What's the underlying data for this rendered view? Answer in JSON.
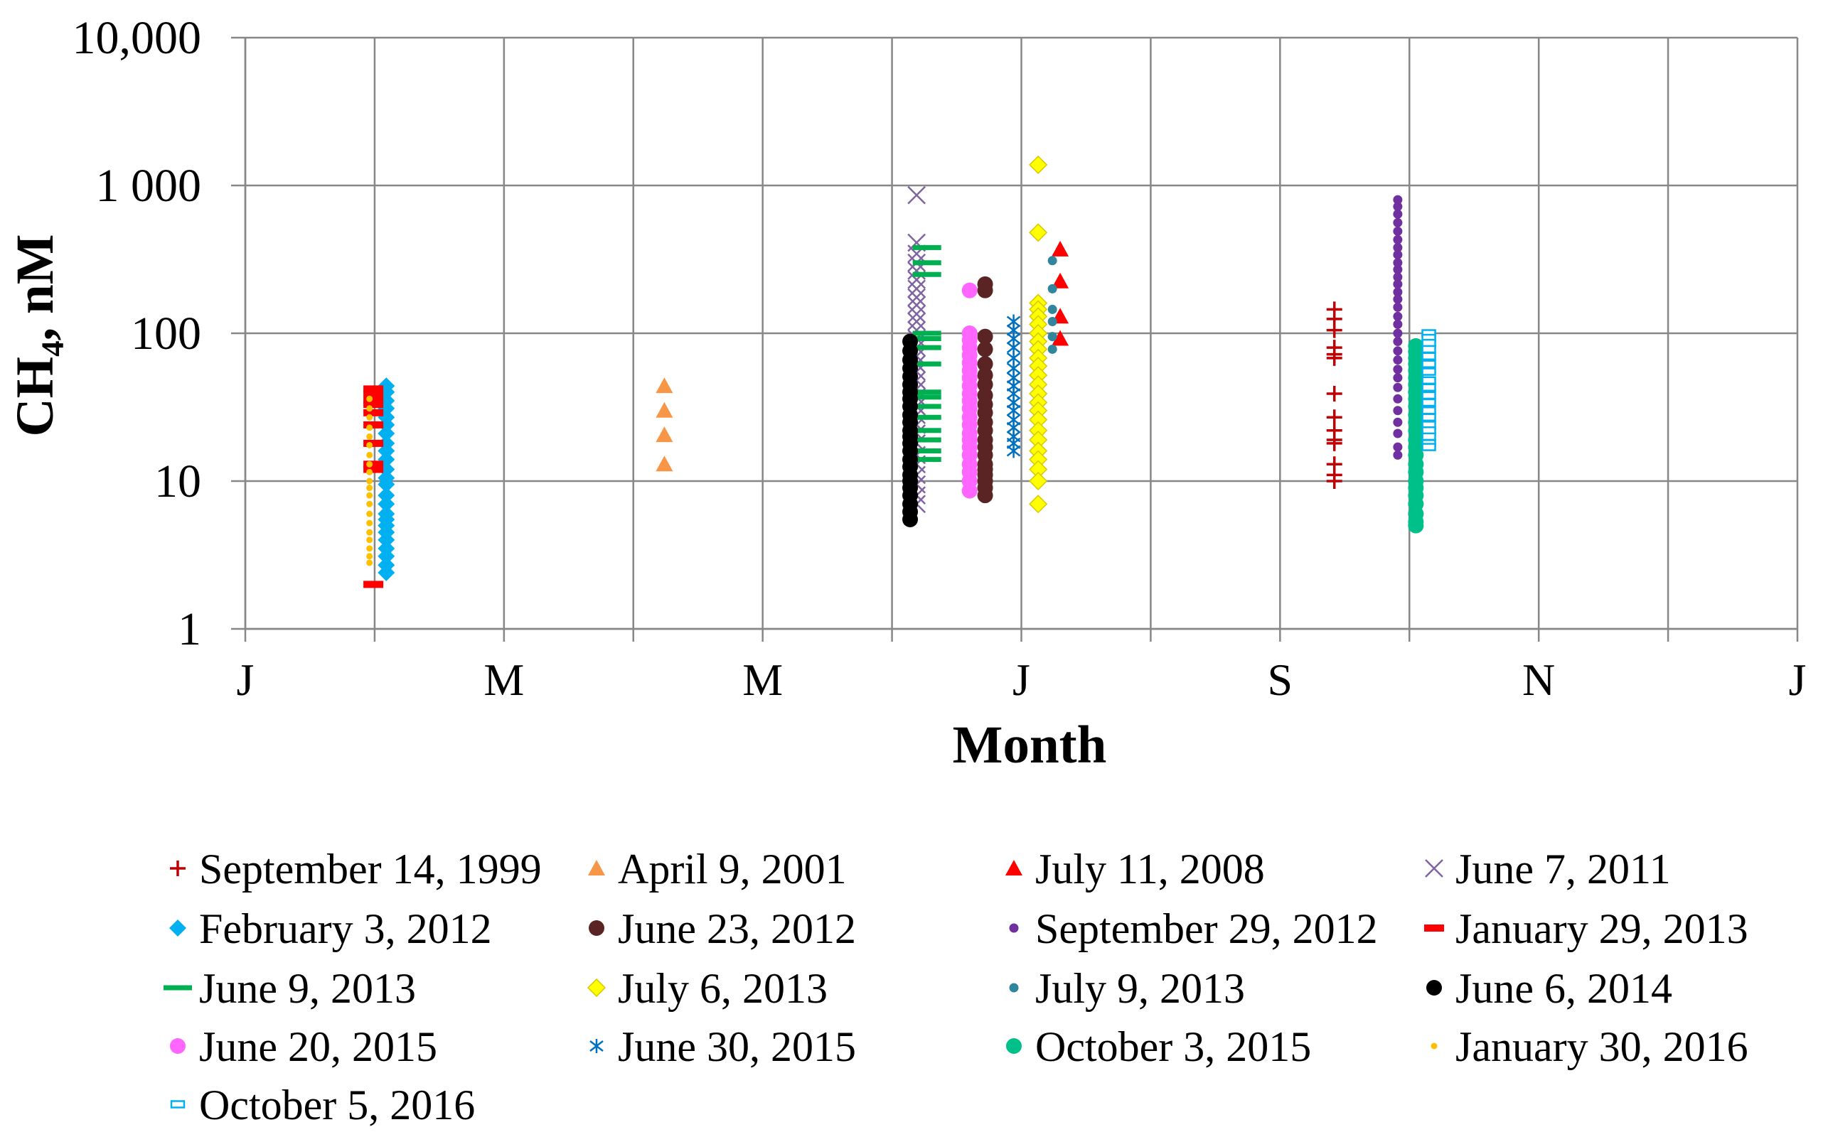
{
  "chart_data": {
    "type": "scatter",
    "title": "",
    "xlabel": "Month",
    "ylabel": "CH₄, nM",
    "x_scale": "linear",
    "y_scale": "log",
    "xlim": [
      0,
      12
    ],
    "ylim": [
      1,
      10000
    ],
    "x_grid_step": 1,
    "x_ticks": [
      0,
      2,
      4,
      6,
      8,
      10,
      12
    ],
    "x_tick_labels": [
      "J",
      "M",
      "M",
      "J",
      "S",
      "N",
      "J"
    ],
    "y_ticks": [
      1,
      10,
      100,
      1000,
      10000
    ],
    "y_tick_labels": [
      "1",
      "10",
      "100",
      "1 000",
      "10,000"
    ],
    "grid": true,
    "legend_position": "bottom",
    "series": [
      {
        "name": "September 14, 1999",
        "marker": "plus",
        "color": "#c00000",
        "x": 8.42,
        "y": [
          145,
          125,
          105,
          80,
          72,
          68,
          39,
          27,
          22,
          19,
          18,
          13,
          11,
          10
        ]
      },
      {
        "name": "April 9, 2001",
        "marker": "triangle",
        "color": "#f79646",
        "x": 3.24,
        "y": [
          44,
          30,
          20.5,
          13
        ]
      },
      {
        "name": "July 11, 2008",
        "marker": "triangle",
        "color": "#ff0000",
        "x": 6.3,
        "y": [
          370,
          225,
          130,
          92
        ]
      },
      {
        "name": "June 7, 2011",
        "marker": "x",
        "color": "#8064a2",
        "x": 5.19,
        "y": [
          860,
          410,
          345,
          300,
          265,
          230,
          200,
          175,
          155,
          135,
          120,
          105,
          92,
          80,
          70,
          62,
          55,
          48,
          42,
          37,
          32,
          28,
          24,
          21,
          18,
          15,
          13,
          11,
          9.5,
          8,
          7
        ]
      },
      {
        "name": "February 3, 2012",
        "marker": "diamond",
        "color": "#00b0f0",
        "x": 1.09,
        "y": [
          44,
          40,
          35,
          31,
          27,
          24,
          21,
          18,
          16,
          14,
          12,
          10.5,
          9.5,
          8,
          7,
          6,
          5.5,
          5,
          4.5,
          4,
          3.5,
          3.1,
          2.7,
          2.4
        ]
      },
      {
        "name": "June 23, 2012",
        "marker": "circle",
        "color": "#5a2324",
        "x": 5.72,
        "y": [
          215,
          195,
          95,
          78,
          62,
          52,
          45,
          38,
          33,
          29,
          25,
          22,
          19,
          17,
          15,
          13,
          12,
          11,
          10,
          9,
          8
        ]
      },
      {
        "name": "September 29, 2012",
        "marker": "smallcircle",
        "color": "#7030a0",
        "x": 8.91,
        "y": [
          800,
          720,
          640,
          560,
          490,
          430,
          380,
          340,
          300,
          270,
          240,
          215,
          190,
          170,
          150,
          130,
          115,
          100,
          88,
          76,
          66,
          57,
          50,
          43,
          36,
          30,
          25,
          21,
          17,
          15
        ]
      },
      {
        "name": "January 29, 2013",
        "marker": "dash",
        "color": "#ff0000",
        "x": 0.99,
        "y": [
          42,
          39,
          35,
          33,
          29,
          24,
          18,
          13,
          12,
          2
        ]
      },
      {
        "name": "June 9, 2013",
        "marker": "longdash",
        "color": "#00b050",
        "x": 5.27,
        "y": [
          380,
          300,
          250,
          100,
          92,
          80,
          62,
          40,
          37,
          32,
          27,
          22,
          19,
          16,
          14
        ]
      },
      {
        "name": "July 6, 2013",
        "marker": "diamond",
        "color": "#ffff00",
        "edge_color": "#d9c800",
        "x": 6.13,
        "y": [
          1380,
          480,
          160,
          145,
          130,
          115,
          100,
          88,
          78,
          68,
          60,
          52,
          45,
          39,
          34,
          30,
          26,
          22,
          19,
          16,
          14,
          12,
          10,
          7
        ]
      },
      {
        "name": "July 9, 2013",
        "marker": "smallcircle",
        "color": "#31859c",
        "x": 6.24,
        "y": [
          310,
          200,
          145,
          120,
          95,
          78
        ]
      },
      {
        "name": "June 6, 2014",
        "marker": "circle",
        "color": "#000000",
        "x": 5.14,
        "y": [
          88,
          76,
          66,
          58,
          51,
          45,
          40,
          36,
          32,
          28,
          25,
          22,
          20,
          18,
          16,
          14,
          12.5,
          11,
          10,
          9,
          8,
          7,
          6.2,
          5.5
        ]
      },
      {
        "name": "June 20, 2015",
        "marker": "circle",
        "color": "#ff66ff",
        "x": 5.6,
        "y": [
          195,
          100,
          90,
          80,
          71,
          63,
          56,
          50,
          44,
          39,
          35,
          31,
          27,
          24,
          21,
          19,
          17,
          15,
          13,
          11.5,
          10,
          8.6
        ]
      },
      {
        "name": "June 30, 2015",
        "marker": "asterisk",
        "color": "#0070c0",
        "x": 5.94,
        "y": [
          120,
          105,
          92,
          80,
          68,
          58,
          50,
          44,
          39,
          34,
          30,
          26,
          23,
          20,
          18,
          16
        ]
      },
      {
        "name": "October 3, 2015",
        "marker": "circle",
        "color": "#00c08a",
        "x": 9.05,
        "y": [
          82,
          75,
          68,
          62,
          56,
          50,
          45,
          40,
          36,
          32,
          28,
          25,
          22,
          19,
          17,
          15,
          13,
          11.5,
          10,
          9,
          8,
          7,
          6,
          5.3,
          5
        ]
      },
      {
        "name": "January 30, 2016",
        "marker": "dot",
        "color": "#ffc000",
        "x": 0.96,
        "y": [
          36,
          31,
          27,
          23,
          20,
          17.5,
          15,
          13,
          11.5,
          10,
          9,
          8,
          7,
          6,
          5.2,
          4.5,
          4,
          3.5,
          3.1,
          2.8
        ]
      },
      {
        "name": "October 5, 2016",
        "marker": "hollowrect",
        "color": "#00b0f0",
        "x": 9.15,
        "y": [
          100,
          93,
          86,
          78,
          70,
          62,
          55,
          48,
          43,
          38,
          34,
          30,
          27,
          24,
          22,
          20,
          18,
          17
        ]
      }
    ]
  }
}
